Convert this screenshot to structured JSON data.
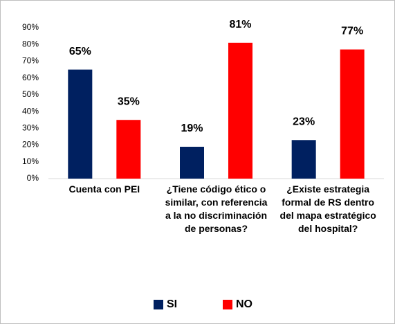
{
  "chart_data": {
    "type": "bar",
    "categories": [
      "Cuenta con PEI",
      "¿Tiene código ético o similar, con referencia a la no discriminación de personas?",
      "¿Existe estrategia formal de RS dentro del mapa estratégico del hospital?"
    ],
    "series": [
      {
        "name": "SI",
        "color": "#002060",
        "values": [
          65,
          19,
          23
        ],
        "value_labels": [
          "65%",
          "19%",
          "23%"
        ]
      },
      {
        "name": "NO",
        "color": "#ff0000",
        "values": [
          35,
          81,
          77
        ],
        "value_labels": [
          "35%",
          "81%",
          "77%"
        ]
      }
    ],
    "ylim": [
      0,
      90
    ],
    "yticks": [
      {
        "value": 0,
        "label": "0%"
      },
      {
        "value": 10,
        "label": "10%"
      },
      {
        "value": 20,
        "label": "20%"
      },
      {
        "value": 30,
        "label": "30%"
      },
      {
        "value": 40,
        "label": "40%"
      },
      {
        "value": 50,
        "label": "50%"
      },
      {
        "value": 60,
        "label": "60%"
      },
      {
        "value": 70,
        "label": "70%"
      },
      {
        "value": 80,
        "label": "80%"
      },
      {
        "value": 90,
        "label": "90%"
      }
    ],
    "grid": false,
    "legend": "bottom"
  }
}
